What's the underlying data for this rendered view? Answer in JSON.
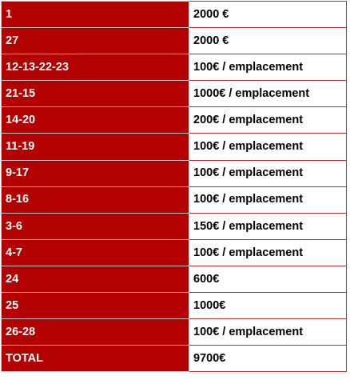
{
  "colors": {
    "label_background": "#b30000",
    "label_text": "#ffffff",
    "price_background": "#ffffff",
    "price_text": "#000000"
  },
  "rows": [
    {
      "label": "1",
      "price": "2000 €"
    },
    {
      "label": "27",
      "price": "2000 €"
    },
    {
      "label": "12-13-22-23",
      "price": "100€ / emplacement"
    },
    {
      "label": "21-15",
      "price": "1000€ / emplacement"
    },
    {
      "label": "14-20",
      "price": "200€ / emplacement"
    },
    {
      "label": "11-19",
      "price": "100€ / emplacement"
    },
    {
      "label": "9-17",
      "price": "100€ / emplacement"
    },
    {
      "label": "8-16",
      "price": "100€ / emplacement"
    },
    {
      "label": "3-6",
      "price": "150€ / emplacement"
    },
    {
      "label": "4-7",
      "price": "100€ / emplacement"
    },
    {
      "label": "24",
      "price": "600€"
    },
    {
      "label": "25",
      "price": "1000€"
    },
    {
      "label": "26-28",
      "price": "100€ / emplacement"
    },
    {
      "label": "TOTAL",
      "price": "9700€"
    }
  ]
}
